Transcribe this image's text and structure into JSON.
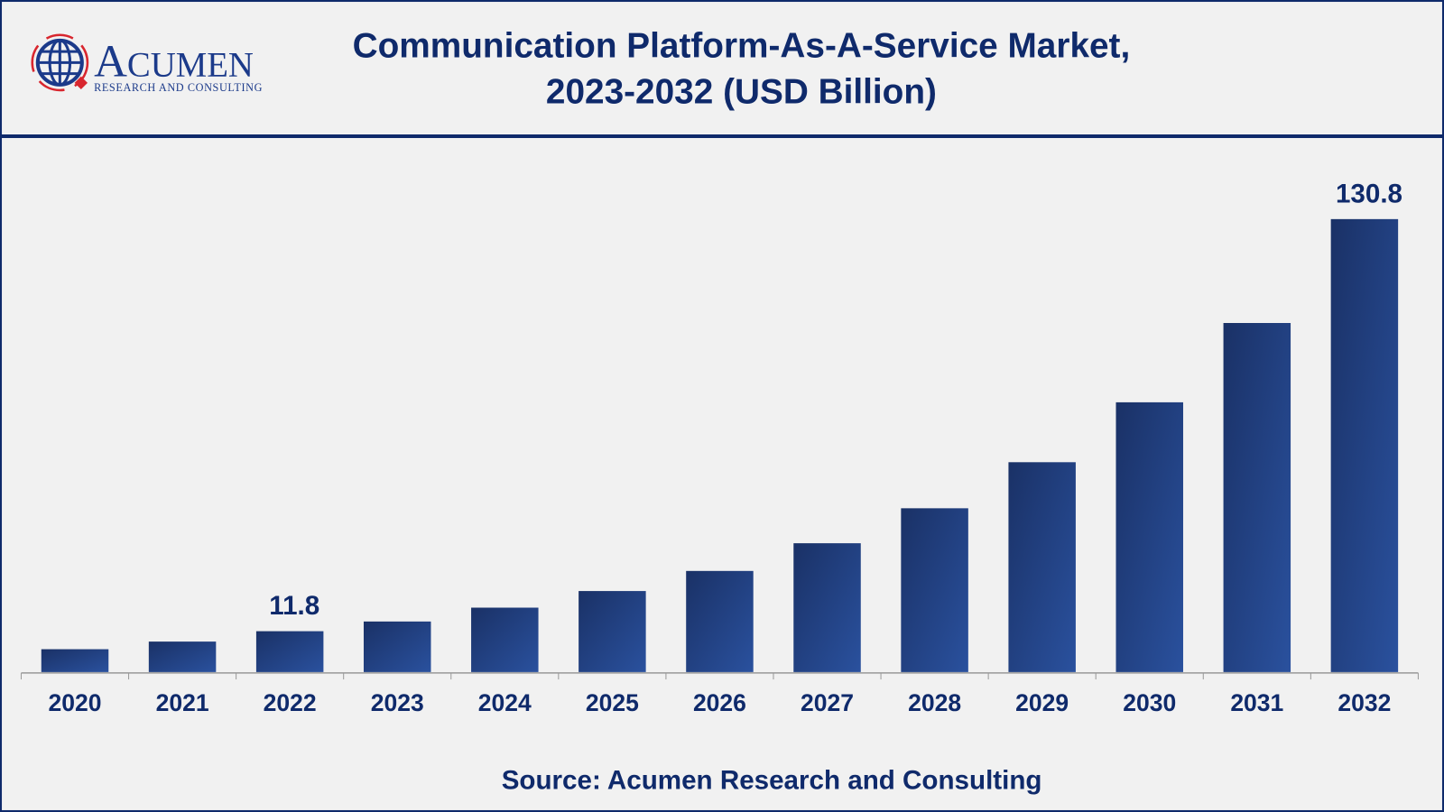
{
  "logo": {
    "name": "ACUMEN",
    "tagline": "RESEARCH AND CONSULTING"
  },
  "title_line1": "Communication Platform-As-A-Service Market,",
  "title_line2": "2023-2032 (USD Billion)",
  "source": "Source: Acumen Research and Consulting",
  "colors": {
    "bar_dark": "#1a3166",
    "bar_light": "#2a519e",
    "text": "#0f2a6b",
    "border": "#0f2a6b",
    "background": "#f1f1f1"
  },
  "chart_data": {
    "type": "bar",
    "title": "Communication Platform-As-A-Service Market, 2023-2032 (USD Billion)",
    "categories": [
      "2020",
      "2021",
      "2022",
      "2023",
      "2024",
      "2025",
      "2026",
      "2027",
      "2028",
      "2029",
      "2030",
      "2031",
      "2032"
    ],
    "values": [
      6.6,
      8.8,
      11.8,
      14.6,
      18.6,
      23.4,
      29.2,
      37.2,
      47.3,
      60.6,
      77.9,
      100.8,
      130.8
    ],
    "data_labels": {
      "2022": "11.8",
      "2032": "130.8"
    },
    "xlabel": "",
    "ylabel": "",
    "ylim": [
      0,
      130.8
    ],
    "grid": false,
    "legend": "none"
  }
}
